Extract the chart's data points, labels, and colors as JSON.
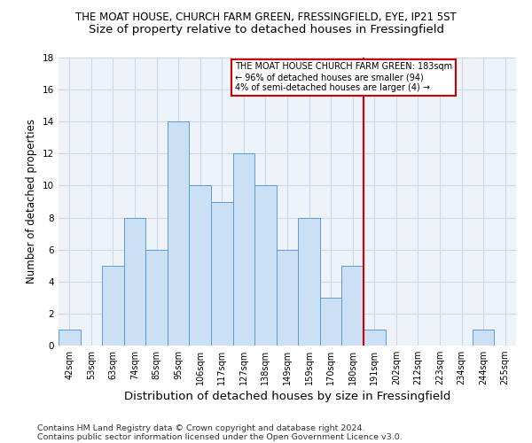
{
  "title": "THE MOAT HOUSE, CHURCH FARM GREEN, FRESSINGFIELD, EYE, IP21 5ST",
  "subtitle": "Size of property relative to detached houses in Fressingfield",
  "xlabel": "Distribution of detached houses by size in Fressingfield",
  "ylabel": "Number of detached properties",
  "categories": [
    "42sqm",
    "53sqm",
    "63sqm",
    "74sqm",
    "85sqm",
    "95sqm",
    "106sqm",
    "117sqm",
    "127sqm",
    "138sqm",
    "149sqm",
    "159sqm",
    "170sqm",
    "180sqm",
    "191sqm",
    "202sqm",
    "212sqm",
    "223sqm",
    "234sqm",
    "244sqm",
    "255sqm"
  ],
  "values": [
    1,
    0,
    5,
    8,
    6,
    14,
    10,
    9,
    12,
    10,
    6,
    8,
    3,
    5,
    1,
    0,
    0,
    0,
    0,
    1,
    0
  ],
  "bar_color": "#cce0f5",
  "bar_edge_color": "#5b9bd5",
  "grid_color": "#d0d8e8",
  "vline_x": 13.5,
  "vline_color": "#cc0000",
  "annotation_text": "THE MOAT HOUSE CHURCH FARM GREEN: 183sqm\n← 96% of detached houses are smaller (94)\n4% of semi-detached houses are larger (4) →",
  "annotation_box_color": "#ffffff",
  "annotation_box_edge": "#cc0000",
  "footnote1": "Contains HM Land Registry data © Crown copyright and database right 2024.",
  "footnote2": "Contains public sector information licensed under the Open Government Licence v3.0.",
  "ylim": [
    0,
    18
  ],
  "yticks": [
    0,
    2,
    4,
    6,
    8,
    10,
    12,
    14,
    16,
    18
  ],
  "background_color": "#eef2f9",
  "title_fontsize": 8.5,
  "subtitle_fontsize": 9.5,
  "tick_fontsize": 7.0,
  "ylabel_fontsize": 8.5,
  "xlabel_fontsize": 9.5,
  "footnote_fontsize": 6.8
}
